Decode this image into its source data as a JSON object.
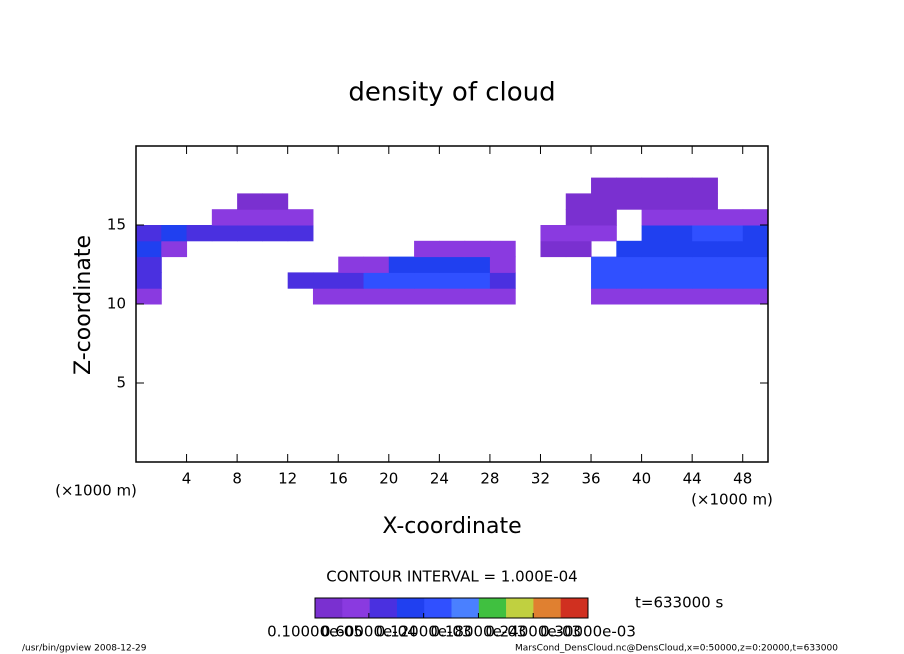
{
  "chart_data": {
    "type": "heatmap",
    "title": "density of cloud",
    "x_label": "X-coordinate",
    "y_label": "Z-coordinate",
    "x_unit": "(×1000 m)",
    "y_unit": "(×1000 m)",
    "xlim": [
      0,
      50
    ],
    "ylim": [
      0,
      20
    ],
    "xticks": [
      4,
      8,
      12,
      16,
      20,
      24,
      28,
      32,
      36,
      40,
      44,
      48
    ],
    "yticks": [
      5,
      10,
      15
    ],
    "x": [
      1,
      3,
      5,
      7,
      9,
      11,
      13,
      15,
      17,
      19,
      21,
      23,
      25,
      27,
      29,
      31,
      33,
      35,
      37,
      39,
      41,
      43,
      45,
      47,
      49
    ],
    "z": [
      10.5,
      11.5,
      12.5,
      13.5,
      14.5,
      15.5,
      16.5,
      17.5
    ],
    "values": [
      [
        5e-05,
        null,
        null,
        null,
        null,
        null,
        null,
        5e-05,
        5e-05,
        5e-05,
        5e-05,
        5e-05,
        5e-05,
        5e-05,
        5e-05,
        null,
        null,
        null,
        6e-05,
        6e-05,
        6e-05,
        6e-05,
        6e-05,
        6e-05,
        6e-05
      ],
      [
        7e-05,
        null,
        null,
        null,
        null,
        null,
        9e-05,
        9e-05,
        9e-05,
        0.00015,
        0.00015,
        0.00015,
        0.00015,
        0.00015,
        9e-05,
        null,
        null,
        null,
        0.00014,
        0.00014,
        0.00014,
        0.00014,
        0.00014,
        0.00014,
        0.00014
      ],
      [
        8e-05,
        null,
        null,
        null,
        null,
        null,
        null,
        null,
        6e-05,
        6e-05,
        0.00012,
        0.00012,
        0.00012,
        0.00012,
        6e-05,
        null,
        null,
        null,
        0.00013,
        0.00013,
        0.00013,
        0.00013,
        0.00013,
        0.00013,
        0.00013
      ],
      [
        0.0001,
        5e-05,
        null,
        null,
        null,
        null,
        null,
        null,
        null,
        null,
        null,
        5e-05,
        5e-05,
        5e-05,
        5e-05,
        null,
        3e-05,
        3e-05,
        null,
        0.00012,
        0.00012,
        0.00012,
        0.00012,
        0.00012,
        0.00012
      ],
      [
        8e-05,
        0.00012,
        8e-05,
        8e-05,
        8e-05,
        8e-05,
        8e-05,
        null,
        null,
        null,
        null,
        null,
        null,
        null,
        null,
        null,
        4e-05,
        4e-05,
        4e-05,
        null,
        0.0001,
        0.0001,
        0.00014,
        0.00014,
        0.0001
      ],
      [
        null,
        null,
        null,
        4e-05,
        4e-05,
        4e-05,
        4e-05,
        null,
        null,
        null,
        null,
        null,
        null,
        null,
        null,
        null,
        null,
        3e-05,
        3e-05,
        null,
        6e-05,
        6e-05,
        6e-05,
        6e-05,
        6e-05
      ],
      [
        null,
        null,
        null,
        null,
        3e-05,
        3e-05,
        null,
        null,
        null,
        null,
        null,
        null,
        null,
        null,
        null,
        null,
        null,
        3e-05,
        3e-05,
        3e-05,
        3e-05,
        3e-05,
        3e-05,
        null,
        null
      ],
      [
        null,
        null,
        null,
        null,
        null,
        null,
        null,
        null,
        null,
        null,
        null,
        null,
        null,
        null,
        null,
        null,
        null,
        null,
        3e-05,
        3e-05,
        3e-05,
        3e-05,
        3e-05,
        null,
        null
      ]
    ],
    "colormap": [
      "#7a30d0",
      "#8a3ae0",
      "#4a30e0",
      "#2040f0",
      "#3050ff",
      "#4a80ff",
      "#40c040",
      "#c0d040",
      "#e08030",
      "#d03020"
    ],
    "clim": [
      1e-06,
      0.0003
    ],
    "colorbar_ticks": [
      {
        "value": 1e-06,
        "label": "0.10000e-05"
      },
      {
        "value": 6e-05,
        "label": "0.60000e-04"
      },
      {
        "value": 0.00012,
        "label": "0.12000e-03"
      },
      {
        "value": 0.00018,
        "label": "0.18000e-03"
      },
      {
        "value": 0.00024,
        "label": "0.24000e-03"
      },
      {
        "value": 0.0003,
        "label": "0.30000e-03"
      }
    ],
    "contour_interval": "CONTOUR INTERVAL = 1.000E-04",
    "time_label": "t=633000 s",
    "footer_left": "/usr/bin/gpview   2008-12-29",
    "footer_right": "MarsCond_DensCloud.nc@DensCloud,x=0:50000,z=0:20000,t=633000"
  }
}
